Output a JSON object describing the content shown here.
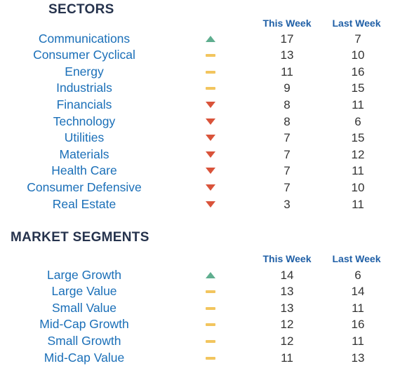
{
  "sectors": {
    "title": "SECTORS",
    "col_this_week": "This Week",
    "col_last_week": "Last Week",
    "rows": [
      {
        "name": "Communications",
        "trend": "up",
        "this_week": "17",
        "last_week": "7"
      },
      {
        "name": "Consumer Cyclical",
        "trend": "flat",
        "this_week": "13",
        "last_week": "10"
      },
      {
        "name": "Energy",
        "trend": "flat",
        "this_week": "11",
        "last_week": "16"
      },
      {
        "name": "Industrials",
        "trend": "flat",
        "this_week": "9",
        "last_week": "15"
      },
      {
        "name": "Financials",
        "trend": "down",
        "this_week": "8",
        "last_week": "11"
      },
      {
        "name": "Technology",
        "trend": "down",
        "this_week": "8",
        "last_week": "6"
      },
      {
        "name": "Utilities",
        "trend": "down",
        "this_week": "7",
        "last_week": "15"
      },
      {
        "name": "Materials",
        "trend": "down",
        "this_week": "7",
        "last_week": "12"
      },
      {
        "name": "Health Care",
        "trend": "down",
        "this_week": "7",
        "last_week": "11"
      },
      {
        "name": "Consumer Defensive",
        "trend": "down",
        "this_week": "7",
        "last_week": "10"
      },
      {
        "name": "Real Estate",
        "trend": "down",
        "this_week": "3",
        "last_week": "11"
      }
    ]
  },
  "segments": {
    "title": "MARKET SEGMENTS",
    "col_this_week": "This Week",
    "col_last_week": "Last Week",
    "rows": [
      {
        "name": "Large Growth",
        "trend": "up",
        "this_week": "14",
        "last_week": "6"
      },
      {
        "name": "Large Value",
        "trend": "flat",
        "this_week": "13",
        "last_week": "14"
      },
      {
        "name": "Small Value",
        "trend": "flat",
        "this_week": "13",
        "last_week": "11"
      },
      {
        "name": "Mid-Cap Growth",
        "trend": "flat",
        "this_week": "12",
        "last_week": "16"
      },
      {
        "name": "Small Growth",
        "trend": "flat",
        "this_week": "12",
        "last_week": "11"
      },
      {
        "name": "Mid-Cap Value",
        "trend": "flat",
        "this_week": "11",
        "last_week": "13"
      }
    ]
  },
  "icons": {
    "up": "triangle-up-icon",
    "down": "triangle-down-icon",
    "flat": "dash-flat-icon"
  },
  "colors": {
    "up": "#5fae8f",
    "down": "#d9533a",
    "flat": "#f2c55e",
    "label": "#1a6fb8",
    "header": "#1f5fa6",
    "title": "#26334d"
  }
}
